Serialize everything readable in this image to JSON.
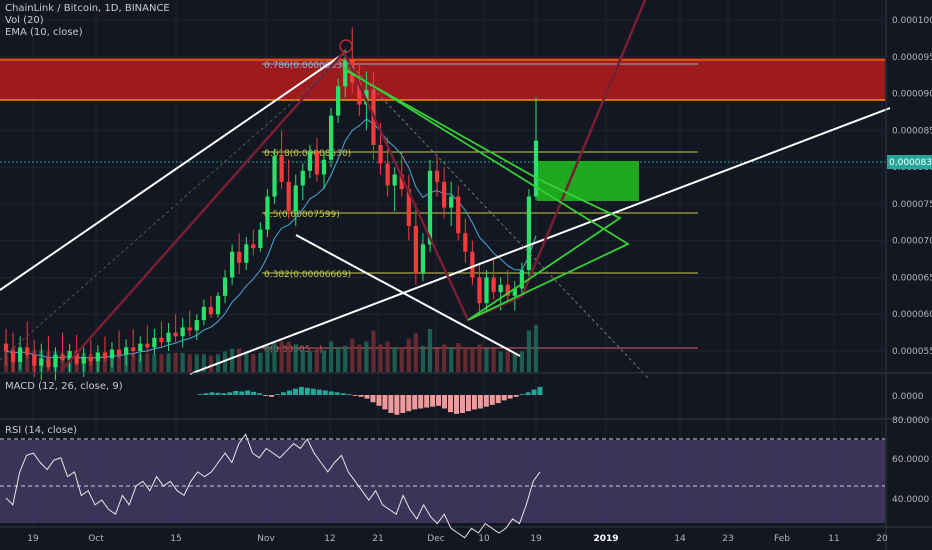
{
  "header": {
    "symbol_line": "ChainLink / Bitcoin, 1D, BINANCE",
    "vol_label": "Vol (20)",
    "ema_label": "EMA (10, close)"
  },
  "macd": {
    "label": "MACD (12, 26, close, 9)",
    "axis_value": "0.0000"
  },
  "rsi": {
    "label": "RSI (14, close)",
    "levels": [
      "80.0000",
      "60.0000",
      "40.0000"
    ]
  },
  "fib": {
    "f786": "0.786(0.00009834)",
    "f618": "0.618(0.00008530)",
    "f5": "0.5(0.00007599)",
    "f382": "0.382(0.00006669)",
    "f0": "0(0.00005...)"
  },
  "price_badge": "0.00008364",
  "colors": {
    "background": "#131722",
    "up": "#26a69a",
    "down": "#ef5350",
    "resistance_zone": "#b71c1c",
    "target_zone": "#1fb81f",
    "fib_line": "#c8c848",
    "rsi_band": "#4a3d6b"
  },
  "chart_data": {
    "type": "candlestick",
    "title": "ChainLink / Bitcoin, 1D, BINANCE",
    "y_axis": {
      "ticks": [
        "0.00010500",
        "0.00010000",
        "0.00009500",
        "0.00009000",
        "0.00008500",
        "0.00008000",
        "0.00007500",
        "0.00007000",
        "0.00006500",
        "0.00006000",
        "0.00005500"
      ],
      "range": [
        5.05e-05,
        0.000108
      ]
    },
    "x_axis": {
      "ticks": [
        "19",
        "Oct",
        "15",
        "Nov",
        "12",
        "21",
        "Dec",
        "10",
        "19",
        "2019",
        "14",
        "23",
        "Feb",
        "11",
        "20"
      ]
    },
    "ohlc": [
      {
        "o": 5.6,
        "h": 5.8,
        "l": 5.3,
        "c": 5.5
      },
      {
        "o": 5.5,
        "h": 5.75,
        "l": 5.2,
        "c": 5.35
      },
      {
        "o": 5.35,
        "h": 5.7,
        "l": 5.25,
        "c": 5.55
      },
      {
        "o": 5.55,
        "h": 5.9,
        "l": 5.4,
        "c": 5.45
      },
      {
        "o": 5.45,
        "h": 5.65,
        "l": 5.15,
        "c": 5.3
      },
      {
        "o": 5.3,
        "h": 5.6,
        "l": 5.1,
        "c": 5.4
      },
      {
        "o": 5.4,
        "h": 5.7,
        "l": 5.25,
        "c": 5.28
      },
      {
        "o": 5.28,
        "h": 5.55,
        "l": 5.1,
        "c": 5.45
      },
      {
        "o": 5.45,
        "h": 5.75,
        "l": 5.35,
        "c": 5.38
      },
      {
        "o": 5.38,
        "h": 5.6,
        "l": 5.2,
        "c": 5.5
      },
      {
        "o": 5.5,
        "h": 5.72,
        "l": 5.3,
        "c": 5.33
      },
      {
        "o": 5.33,
        "h": 5.55,
        "l": 5.15,
        "c": 5.42
      },
      {
        "o": 5.42,
        "h": 5.65,
        "l": 5.3,
        "c": 5.36
      },
      {
        "o": 5.36,
        "h": 5.58,
        "l": 5.2,
        "c": 5.48
      },
      {
        "o": 5.48,
        "h": 5.7,
        "l": 5.35,
        "c": 5.4
      },
      {
        "o": 5.4,
        "h": 5.62,
        "l": 5.28,
        "c": 5.52
      },
      {
        "o": 5.52,
        "h": 5.78,
        "l": 5.4,
        "c": 5.45
      },
      {
        "o": 5.45,
        "h": 5.66,
        "l": 5.3,
        "c": 5.55
      },
      {
        "o": 5.55,
        "h": 5.8,
        "l": 5.42,
        "c": 5.5
      },
      {
        "o": 5.5,
        "h": 5.7,
        "l": 5.35,
        "c": 5.6
      },
      {
        "o": 5.6,
        "h": 5.85,
        "l": 5.48,
        "c": 5.55
      },
      {
        "o": 5.55,
        "h": 5.8,
        "l": 5.45,
        "c": 5.68
      },
      {
        "o": 5.68,
        "h": 5.9,
        "l": 5.55,
        "c": 5.62
      },
      {
        "o": 5.62,
        "h": 5.88,
        "l": 5.5,
        "c": 5.75
      },
      {
        "o": 5.75,
        "h": 6.0,
        "l": 5.6,
        "c": 5.7
      },
      {
        "o": 5.7,
        "h": 5.95,
        "l": 5.55,
        "c": 5.82
      },
      {
        "o": 5.82,
        "h": 6.05,
        "l": 5.7,
        "c": 5.78
      },
      {
        "o": 5.78,
        "h": 6.0,
        "l": 5.65,
        "c": 5.92
      },
      {
        "o": 5.92,
        "h": 6.2,
        "l": 5.85,
        "c": 6.1
      },
      {
        "o": 6.1,
        "h": 6.25,
        "l": 5.95,
        "c": 6.0
      },
      {
        "o": 6.0,
        "h": 6.3,
        "l": 5.95,
        "c": 6.25
      },
      {
        "o": 6.25,
        "h": 6.6,
        "l": 6.15,
        "c": 6.5
      },
      {
        "o": 6.5,
        "h": 6.95,
        "l": 6.4,
        "c": 6.85
      },
      {
        "o": 6.85,
        "h": 7.1,
        "l": 6.55,
        "c": 6.7
      },
      {
        "o": 6.7,
        "h": 7.05,
        "l": 6.6,
        "c": 6.95
      },
      {
        "o": 6.95,
        "h": 7.15,
        "l": 6.8,
        "c": 6.9
      },
      {
        "o": 6.9,
        "h": 7.25,
        "l": 6.85,
        "c": 7.15
      },
      {
        "o": 7.15,
        "h": 7.7,
        "l": 7.05,
        "c": 7.6
      },
      {
        "o": 7.6,
        "h": 8.25,
        "l": 7.5,
        "c": 8.15
      },
      {
        "o": 8.15,
        "h": 8.5,
        "l": 7.7,
        "c": 7.8
      },
      {
        "o": 7.8,
        "h": 8.1,
        "l": 7.3,
        "c": 7.4
      },
      {
        "o": 7.4,
        "h": 7.9,
        "l": 7.2,
        "c": 7.75
      },
      {
        "o": 7.75,
        "h": 8.05,
        "l": 7.55,
        "c": 7.95
      },
      {
        "o": 7.95,
        "h": 8.3,
        "l": 7.85,
        "c": 8.2
      },
      {
        "o": 8.2,
        "h": 8.4,
        "l": 7.8,
        "c": 7.9
      },
      {
        "o": 7.9,
        "h": 8.2,
        "l": 7.7,
        "c": 8.1
      },
      {
        "o": 8.1,
        "h": 8.8,
        "l": 8.0,
        "c": 8.7
      },
      {
        "o": 8.7,
        "h": 9.2,
        "l": 8.6,
        "c": 9.1
      },
      {
        "o": 9.1,
        "h": 9.6,
        "l": 8.95,
        "c": 9.45
      },
      {
        "o": 9.45,
        "h": 9.9,
        "l": 9.0,
        "c": 9.15
      },
      {
        "o": 9.15,
        "h": 9.4,
        "l": 8.7,
        "c": 8.85
      },
      {
        "o": 8.85,
        "h": 9.3,
        "l": 8.5,
        "c": 9.05
      },
      {
        "o": 9.05,
        "h": 9.3,
        "l": 8.1,
        "c": 8.3
      },
      {
        "o": 8.3,
        "h": 8.6,
        "l": 7.9,
        "c": 8.05
      },
      {
        "o": 8.05,
        "h": 8.4,
        "l": 7.6,
        "c": 7.75
      },
      {
        "o": 7.75,
        "h": 8.0,
        "l": 7.4,
        "c": 7.9
      },
      {
        "o": 7.9,
        "h": 8.2,
        "l": 7.6,
        "c": 7.7
      },
      {
        "o": 7.7,
        "h": 7.9,
        "l": 7.0,
        "c": 7.2
      },
      {
        "o": 7.2,
        "h": 7.5,
        "l": 6.4,
        "c": 6.55
      },
      {
        "o": 6.55,
        "h": 7.1,
        "l": 6.45,
        "c": 6.95
      },
      {
        "o": 6.95,
        "h": 8.1,
        "l": 6.85,
        "c": 7.95
      },
      {
        "o": 7.95,
        "h": 8.15,
        "l": 7.6,
        "c": 7.8
      },
      {
        "o": 7.8,
        "h": 8.0,
        "l": 7.3,
        "c": 7.45
      },
      {
        "o": 7.45,
        "h": 7.8,
        "l": 7.2,
        "c": 7.6
      },
      {
        "o": 7.6,
        "h": 7.75,
        "l": 7.0,
        "c": 7.1
      },
      {
        "o": 7.1,
        "h": 7.3,
        "l": 6.7,
        "c": 6.85
      },
      {
        "o": 6.85,
        "h": 7.0,
        "l": 6.4,
        "c": 6.5
      },
      {
        "o": 6.5,
        "h": 6.7,
        "l": 6.0,
        "c": 6.15
      },
      {
        "o": 6.15,
        "h": 6.6,
        "l": 6.05,
        "c": 6.5
      },
      {
        "o": 6.5,
        "h": 6.75,
        "l": 6.2,
        "c": 6.3
      },
      {
        "o": 6.3,
        "h": 6.5,
        "l": 6.05,
        "c": 6.4
      },
      {
        "o": 6.4,
        "h": 6.6,
        "l": 6.15,
        "c": 6.25
      },
      {
        "o": 6.25,
        "h": 6.45,
        "l": 6.05,
        "c": 6.35
      },
      {
        "o": 6.35,
        "h": 6.7,
        "l": 6.25,
        "c": 6.6
      },
      {
        "o": 6.6,
        "h": 7.7,
        "l": 6.5,
        "c": 7.6
      },
      {
        "o": 7.6,
        "h": 8.95,
        "l": 7.55,
        "c": 8.36
      }
    ],
    "rsi_values": [
      55,
      52,
      66,
      73,
      74,
      70,
      67,
      71,
      72,
      64,
      66,
      56,
      58,
      52,
      54,
      50,
      48,
      56,
      52,
      60,
      62,
      58,
      64,
      60,
      62,
      58,
      56,
      62,
      66,
      64,
      66,
      70,
      74,
      70,
      78,
      82,
      74,
      72,
      76,
      74,
      72,
      75,
      78,
      76,
      80,
      74,
      70,
      66,
      70,
      73,
      66,
      62,
      58,
      54,
      58,
      52,
      50,
      48,
      56,
      50,
      46,
      52,
      47,
      44,
      48,
      42,
      40,
      38,
      42,
      40,
      44,
      42,
      40,
      42,
      46,
      44,
      52,
      62,
      66
    ],
    "macd_hist": [
      0.1,
      0.2,
      0.3,
      0.25,
      0.2,
      0.3,
      0.45,
      0.4,
      0.5,
      0.35,
      0.2,
      -0.1,
      -0.2,
      0.1,
      0.3,
      0.5,
      0.7,
      0.9,
      0.8,
      0.7,
      0.6,
      0.5,
      0.4,
      0.3,
      0.2,
      0.1,
      -0.1,
      -0.2,
      -0.4,
      -0.8,
      -1.2,
      -1.6,
      -2.0,
      -2.2,
      -2.0,
      -1.8,
      -1.6,
      -1.5,
      -1.4,
      -1.3,
      -1.2,
      -1.5,
      -1.9,
      -2.1,
      -2.0,
      -1.8,
      -1.6,
      -1.5,
      -1.3,
      -1.1,
      -0.9,
      -0.6,
      -0.4,
      -0.2,
      0.1,
      0.3,
      0.6,
      0.9
    ]
  }
}
